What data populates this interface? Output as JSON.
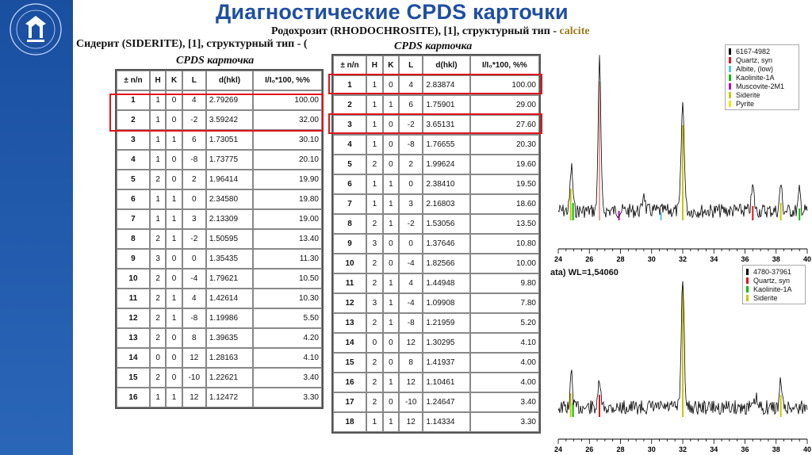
{
  "slide_title": "Диагностические CPDS карточки",
  "siderite": {
    "caption": "Сидерит (SIDERITE), [1], структурный тип - (",
    "card_title": "CPDS карточка",
    "headers": [
      "± n/n",
      "H",
      "K",
      "L",
      "d(hkl)",
      "I/I₀*100, %%"
    ],
    "rows": [
      [
        "1",
        "1",
        "0",
        "4",
        "2.79269",
        "100.00"
      ],
      [
        "2",
        "1",
        "0",
        "-2",
        "3.59242",
        "32.00"
      ],
      [
        "3",
        "1",
        "1",
        "6",
        "1.73051",
        "30.10"
      ],
      [
        "4",
        "1",
        "0",
        "-8",
        "1.73775",
        "20.10"
      ],
      [
        "5",
        "2",
        "0",
        "2",
        "1.96414",
        "19.90"
      ],
      [
        "6",
        "1",
        "1",
        "0",
        "2.34580",
        "19.80"
      ],
      [
        "7",
        "1",
        "1",
        "3",
        "2.13309",
        "19.00"
      ],
      [
        "8",
        "2",
        "1",
        "-2",
        "1.50595",
        "13.40"
      ],
      [
        "9",
        "3",
        "0",
        "0",
        "1.35435",
        "11.30"
      ],
      [
        "10",
        "2",
        "0",
        "-4",
        "1.79621",
        "10.50"
      ],
      [
        "11",
        "2",
        "1",
        "4",
        "1.42614",
        "10.30"
      ],
      [
        "12",
        "2",
        "1",
        "-8",
        "1.19986",
        "5.50"
      ],
      [
        "13",
        "2",
        "0",
        "8",
        "1.39635",
        "4.20"
      ],
      [
        "14",
        "0",
        "0",
        "12",
        "1.28163",
        "4.10"
      ],
      [
        "15",
        "2",
        "0",
        "-10",
        "1.22621",
        "3.40"
      ],
      [
        "16",
        "1",
        "1",
        "12",
        "1.12472",
        "3.30"
      ]
    ]
  },
  "rhodochrosite": {
    "caption_main": "Родохрозит (RHODOCHROSITE), [1], структурный тип - ",
    "caption_type": "calcite",
    "card_title": "CPDS карточка",
    "headers": [
      "± n/n",
      "H",
      "K",
      "L",
      "d(hkl)",
      "I/I₀*100, %%"
    ],
    "rows": [
      [
        "1",
        "1",
        "0",
        "4",
        "2.83874",
        "100.00"
      ],
      [
        "2",
        "1",
        "1",
        "6",
        "1.75901",
        "29.00"
      ],
      [
        "3",
        "1",
        "0",
        "-2",
        "3.65131",
        "27.60"
      ],
      [
        "4",
        "1",
        "0",
        "-8",
        "1.76655",
        "20.30"
      ],
      [
        "5",
        "2",
        "0",
        "2",
        "1.99624",
        "19.60"
      ],
      [
        "6",
        "1",
        "1",
        "0",
        "2.38410",
        "19.50"
      ],
      [
        "7",
        "1",
        "1",
        "3",
        "2.16803",
        "18.60"
      ],
      [
        "8",
        "2",
        "1",
        "-2",
        "1.53056",
        "13.50"
      ],
      [
        "9",
        "3",
        "0",
        "0",
        "1.37646",
        "10.80"
      ],
      [
        "10",
        "2",
        "0",
        "-4",
        "1.82566",
        "10.00"
      ],
      [
        "11",
        "2",
        "1",
        "4",
        "1.44948",
        "9.80"
      ],
      [
        "12",
        "3",
        "1",
        "-4",
        "1.09908",
        "7.80"
      ],
      [
        "13",
        "2",
        "1",
        "-8",
        "1.21959",
        "5.20"
      ],
      [
        "14",
        "0",
        "0",
        "12",
        "1.30295",
        "4.10"
      ],
      [
        "15",
        "2",
        "0",
        "8",
        "1.41937",
        "4.00"
      ],
      [
        "16",
        "2",
        "1",
        "12",
        "1.10461",
        "4.00"
      ],
      [
        "17",
        "2",
        "0",
        "-10",
        "1.24647",
        "3.40"
      ],
      [
        "18",
        "1",
        "1",
        "12",
        "1.14334",
        "3.30"
      ]
    ]
  },
  "diffractogram_top": {
    "legend": [
      {
        "label": "6167-4982",
        "color": "#000000"
      },
      {
        "label": "Quartz, syn",
        "color": "#e0141c"
      },
      {
        "label": "Albite, (low)",
        "color": "#4fc3f7"
      },
      {
        "label": "Kaolinite-1A",
        "color": "#00c000"
      },
      {
        "label": "Muscovite-2M1",
        "color": "#c000c0"
      },
      {
        "label": "Siderite",
        "color": "#c8c800"
      },
      {
        "label": "Pyrite",
        "color": "#e8e800"
      }
    ],
    "x_ticks": [
      "24",
      "26",
      "28",
      "30",
      "32",
      "34",
      "36",
      "38",
      "40"
    ]
  },
  "diffractogram_bottom": {
    "wl_label": "ata) WL=1,54060",
    "legend": [
      {
        "label": "4780-37961",
        "color": "#000000"
      },
      {
        "label": "Quartz, syn",
        "color": "#e0141c"
      },
      {
        "label": "Kaolinite-1A",
        "color": "#00c000"
      },
      {
        "label": "Siderite",
        "color": "#c8c800"
      }
    ],
    "x_ticks": [
      "24",
      "26",
      "28",
      "30",
      "32",
      "34",
      "36",
      "38",
      "40"
    ]
  }
}
